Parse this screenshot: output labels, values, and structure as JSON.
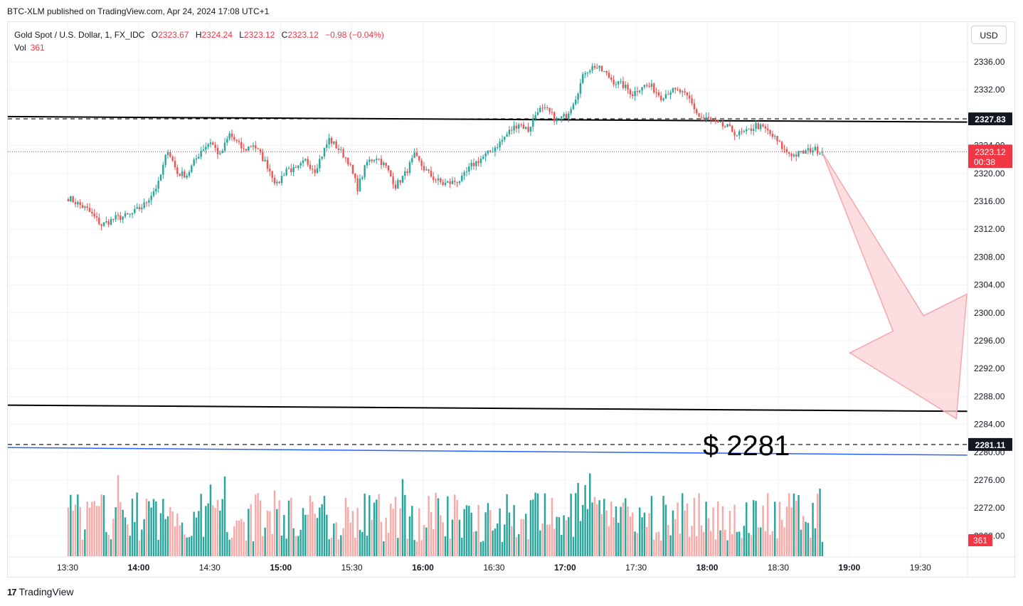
{
  "attribution": "BTC-XLM published on TradingView.com, Apr 24, 2024 17:08 UTC+1",
  "legend": {
    "symbol": "Gold Spot / U.S. Dollar, 1, FX_IDC",
    "open_label": "O",
    "open": "2323.67",
    "high_label": "H",
    "high": "2324.24",
    "low_label": "L",
    "low": "2323.12",
    "close_label": "C",
    "close": "2323.12",
    "change": "−0.98 (−0.04%)",
    "vol_label": "Vol",
    "vol": "361"
  },
  "currency": "USD",
  "footer": {
    "logo_mark": "17",
    "logo_text": "TradingView"
  },
  "colors": {
    "up": "#26a69a",
    "down": "#ef5350",
    "vol_up": "#26a69a",
    "vol_down": "#f7a9a7",
    "price_tag": "#f23645",
    "line": "#000000",
    "blue_line": "#2962ff",
    "arrow_fill": "#fbd3d5",
    "arrow_stroke": "#f7a7ac"
  },
  "chart_data": {
    "type": "candlestick",
    "y_ticks": [
      "2336.00",
      "2332.00",
      "2324.00",
      "2320.00",
      "2316.00",
      "2312.00",
      "2308.00",
      "2304.00",
      "2300.00",
      "2296.00",
      "2292.00",
      "2288.00",
      "2284.00",
      "2280.00",
      "2276.00",
      "2272.00",
      "2268.00"
    ],
    "ylim": [
      2264,
      2340
    ],
    "x_ticks": [
      "13:30",
      "14:00",
      "14:30",
      "15:00",
      "15:30",
      "16:00",
      "16:30",
      "17:00",
      "17:30",
      "18:00",
      "18:30",
      "19:00",
      "19:30"
    ],
    "x_ticks_bold": [
      "14:00",
      "15:00",
      "16:00",
      "17:00",
      "18:00",
      "19:00"
    ],
    "time_range_minutes": [
      0,
      410
    ],
    "close_path": [
      [
        0,
        2316.5
      ],
      [
        8,
        2314.8
      ],
      [
        14,
        2312.6
      ],
      [
        20,
        2313.6
      ],
      [
        26,
        2314.0
      ],
      [
        32,
        2315.5
      ],
      [
        38,
        2318.5
      ],
      [
        42,
        2323.5
      ],
      [
        46,
        2320.0
      ],
      [
        50,
        2319.8
      ],
      [
        56,
        2323.3
      ],
      [
        60,
        2324.6
      ],
      [
        64,
        2322.5
      ],
      [
        68,
        2325.6
      ],
      [
        74,
        2323.3
      ],
      [
        78,
        2324.2
      ],
      [
        84,
        2321.1
      ],
      [
        88,
        2318.3
      ],
      [
        92,
        2320.7
      ],
      [
        96,
        2320.4
      ],
      [
        100,
        2321.8
      ],
      [
        104,
        2320.5
      ],
      [
        110,
        2324.9
      ],
      [
        114,
        2323.5
      ],
      [
        118,
        2321.8
      ],
      [
        122,
        2317.9
      ],
      [
        126,
        2321.6
      ],
      [
        130,
        2322.4
      ],
      [
        134,
        2320.9
      ],
      [
        138,
        2318.2
      ],
      [
        142,
        2319.9
      ],
      [
        146,
        2322.5
      ],
      [
        150,
        2320.7
      ],
      [
        154,
        2319.3
      ],
      [
        158,
        2318.5
      ],
      [
        162,
        2318.7
      ],
      [
        166,
        2319.2
      ],
      [
        170,
        2321.1
      ],
      [
        174,
        2322.1
      ],
      [
        178,
        2323.1
      ],
      [
        182,
        2324.4
      ],
      [
        186,
        2326.0
      ],
      [
        190,
        2327.2
      ],
      [
        194,
        2326.2
      ],
      [
        198,
        2329.2
      ],
      [
        202,
        2329.0
      ],
      [
        206,
        2327.6
      ],
      [
        210,
        2328.3
      ],
      [
        214,
        2331.0
      ],
      [
        218,
        2334.7
      ],
      [
        222,
        2335.4
      ],
      [
        226,
        2334.5
      ],
      [
        230,
        2333.2
      ],
      [
        234,
        2332.6
      ],
      [
        238,
        2331.4
      ],
      [
        242,
        2332.6
      ],
      [
        246,
        2332.4
      ],
      [
        250,
        2331.0
      ],
      [
        254,
        2331.9
      ],
      [
        258,
        2331.7
      ],
      [
        262,
        2330.6
      ],
      [
        266,
        2328.1
      ],
      [
        270,
        2327.8
      ],
      [
        274,
        2327.0
      ],
      [
        278,
        2326.6
      ],
      [
        282,
        2325.6
      ],
      [
        286,
        2325.9
      ],
      [
        290,
        2326.9
      ],
      [
        294,
        2326.3
      ],
      [
        298,
        2325.0
      ],
      [
        302,
        2323.3
      ],
      [
        306,
        2322.6
      ],
      [
        310,
        2323.0
      ],
      [
        314,
        2323.5
      ],
      [
        318,
        2323.1
      ]
    ],
    "volume_note": "one volume bar per 1-minute candle, shown along the bottom of the price pane",
    "current_price_tag": {
      "price": "2323.12",
      "countdown": "00:38",
      "value": 2323.12
    },
    "level_tag_upper": {
      "label": "2327.83",
      "value": 2327.83
    },
    "level_tag_lower": {
      "label": "2281.11",
      "value": 2281.11
    },
    "volume_tag": "361",
    "trendlines": [
      {
        "name": "upper-trendline",
        "from": [
          0,
          2328.1
        ],
        "to": [
          410,
          2327.3
        ]
      },
      {
        "name": "lower-trendline",
        "from": [
          0,
          2286.7
        ],
        "to": [
          410,
          2285.8
        ]
      },
      {
        "name": "blue-trendline",
        "from": [
          0,
          2280.6
        ],
        "to": [
          410,
          2279.5
        ]
      }
    ],
    "projection_arrow": {
      "from": [
        318,
        2323.0
      ],
      "to": [
        283,
        2284.8
      ]
    },
    "target_annotation": "$ 2281"
  }
}
